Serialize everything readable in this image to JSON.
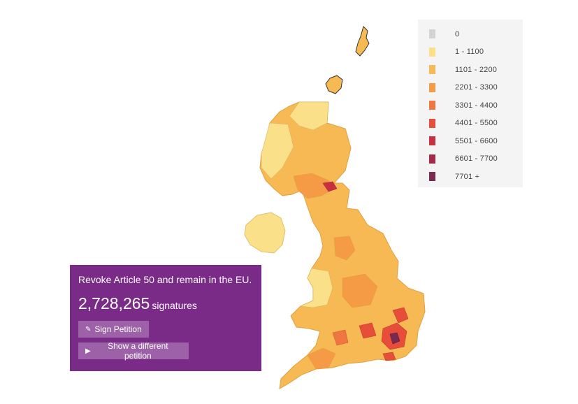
{
  "legend": {
    "items": [
      {
        "label": "0",
        "color": "#d3d3d3"
      },
      {
        "label": "1 - 1100",
        "color": "#fbe08a"
      },
      {
        "label": "1101 - 2200",
        "color": "#f7b954"
      },
      {
        "label": "2201 - 3300",
        "color": "#f59a45"
      },
      {
        "label": "3301 - 4400",
        "color": "#ef7640"
      },
      {
        "label": "4401 - 5500",
        "color": "#e64e3a"
      },
      {
        "label": "5501 - 6600",
        "color": "#c83040"
      },
      {
        "label": "6601 - 7700",
        "color": "#a52a4a"
      },
      {
        "label": "7701 +",
        "color": "#7a2a4e"
      }
    ]
  },
  "petition": {
    "title": "Revoke Article 50 and remain in the EU.",
    "count": "2,728,265",
    "count_unit": "signatures",
    "sign_label": "Sign Petition",
    "other_label": "Show a different petition",
    "panel_color": "#7a2a87"
  }
}
